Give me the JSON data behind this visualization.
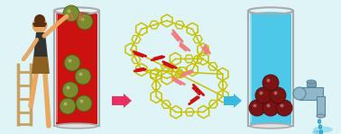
{
  "bg_color": "#dff4f7",
  "beaker1_liquid": "#cc1111",
  "beaker2_liquid": "#4ec8e8",
  "beaker_glass": "#cccccc",
  "beaker_glass_edge": "#aaaaaa",
  "ball_green": "#7a8c2e",
  "ball_green_edge": "#4a5a14",
  "ball_darkred": "#7a1414",
  "ball_darkred_edge": "#4a0808",
  "arrow_pink": "#e83060",
  "arrow_blue": "#38b8e0",
  "polymer_yellow": "#c8c000",
  "dye_red": "#cc1111",
  "dye_pink": "#f08080",
  "person_skin": "#e8a860",
  "person_hair": "#5a3010",
  "person_shirt": "#333333",
  "person_shorts": "#8b6020",
  "ladder_color": "#c8a060",
  "tap_body": "#90b8c8",
  "tap_edge": "#5888a0",
  "water_blue": "#38b8e0",
  "splash_color": "#80d8ea"
}
